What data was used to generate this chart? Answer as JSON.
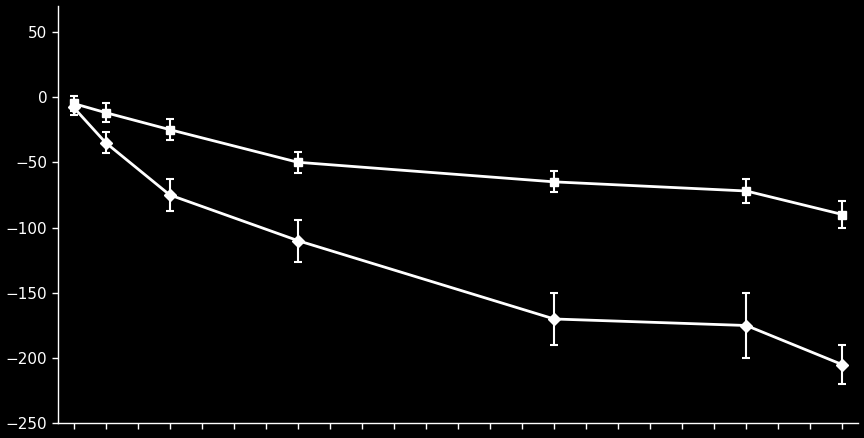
{
  "background_color": "#000000",
  "line_color": "#ffffff",
  "text_color": "#ffffff",
  "ylim": [
    -250,
    70
  ],
  "yticks": [
    50,
    0,
    -50,
    -100,
    -150,
    -200,
    -250
  ],
  "xlim": [
    -0.5,
    24.5
  ],
  "xtick_positions": [
    0,
    1,
    2,
    3,
    4,
    5,
    6,
    7,
    8,
    9,
    10,
    11,
    12,
    13,
    14,
    15,
    16,
    17,
    18,
    19,
    20,
    21,
    22,
    23,
    24
  ],
  "placebo": {
    "x": [
      0,
      1,
      3,
      7,
      15,
      21,
      24
    ],
    "y": [
      -5,
      -12,
      -25,
      -50,
      -65,
      -72,
      -90
    ],
    "ye": [
      6,
      7,
      8,
      8,
      8,
      9,
      10
    ],
    "marker": "s"
  },
  "nintedanib": {
    "x": [
      0,
      1,
      3,
      7,
      15,
      21,
      24
    ],
    "y": [
      -8,
      -35,
      -75,
      -110,
      -170,
      -175,
      -205
    ],
    "ye": [
      6,
      8,
      12,
      16,
      20,
      25,
      15
    ],
    "marker": "D"
  }
}
